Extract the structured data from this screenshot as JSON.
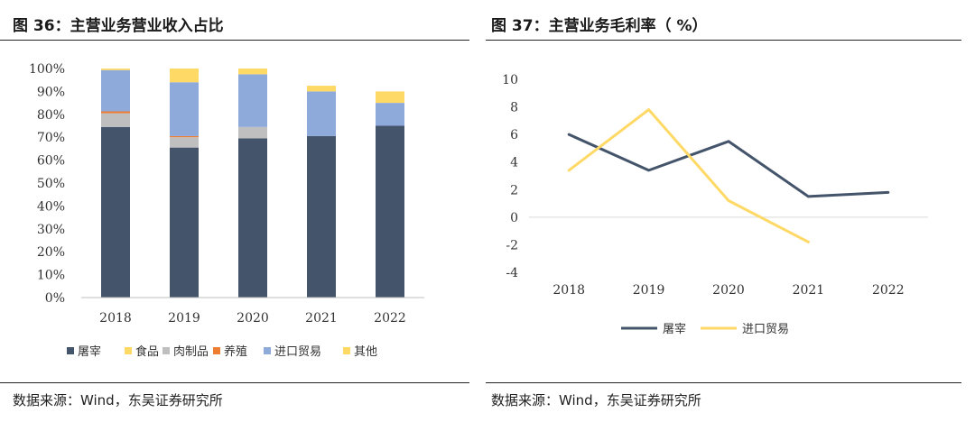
{
  "left": {
    "title": "图 36：主营业务营业收入占比",
    "source": "数据来源：Wind，东吴证券研究所"
  },
  "right": {
    "title": "图 37：主营业务毛利率（  %）",
    "source": "数据来源：Wind，东吴证券研究所"
  },
  "chart_data": [
    {
      "type": "bar",
      "stacked": true,
      "title": "图 36：主营业务营业收入占比",
      "categories": [
        "2018",
        "2019",
        "2020",
        "2021",
        "2022"
      ],
      "yticks": [
        "0%",
        "10%",
        "20%",
        "30%",
        "40%",
        "50%",
        "60%",
        "70%",
        "80%",
        "90%",
        "100%"
      ],
      "ylim": [
        0,
        100
      ],
      "legend_position": "bottom",
      "series": [
        {
          "name": "屠宰",
          "color": "#44546a",
          "values": [
            74.5,
            65.5,
            69.5,
            70.5,
            75.0
          ]
        },
        {
          "name": "食品",
          "color": "#ffd966",
          "values": [
            0,
            0,
            0,
            0,
            0
          ]
        },
        {
          "name": "肉制品",
          "color": "#bfbfbf",
          "values": [
            6.0,
            4.5,
            5.0,
            0,
            0
          ]
        },
        {
          "name": "养殖",
          "color": "#ed7d31",
          "values": [
            0.8,
            0.5,
            0,
            0,
            0
          ]
        },
        {
          "name": "进口贸易",
          "color": "#8eaadb",
          "values": [
            18.0,
            23.5,
            23.0,
            19.5,
            10.0
          ]
        },
        {
          "name": "其他",
          "color": "#ffd966",
          "values": [
            0.7,
            6.0,
            2.5,
            2.5,
            5.0
          ]
        }
      ]
    },
    {
      "type": "line",
      "title": "图 37：主营业务毛利率（  %）",
      "categories": [
        "2018",
        "2019",
        "2020",
        "2021",
        "2022"
      ],
      "yticks": [
        "-4",
        "-2",
        "0",
        "2",
        "4",
        "6",
        "8",
        "10"
      ],
      "ylim": [
        -4,
        10
      ],
      "legend_position": "bottom",
      "series": [
        {
          "name": "屠宰",
          "color": "#44546a",
          "values": [
            6.0,
            3.4,
            5.5,
            1.5,
            1.8
          ]
        },
        {
          "name": "进口贸易",
          "color": "#ffd966",
          "values": [
            3.4,
            7.8,
            1.2,
            -1.8,
            null
          ]
        }
      ]
    }
  ]
}
